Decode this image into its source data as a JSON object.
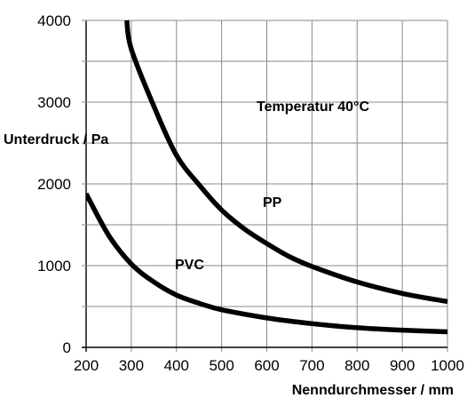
{
  "chart_data": {
    "type": "line",
    "xlabel": "Nenndurchmesser / mm",
    "ylabel": "Unterdruck / Pa",
    "annotation": "Temperatur 40°C",
    "xlim": [
      200,
      1000
    ],
    "ylim": [
      0,
      4000
    ],
    "x_ticks": [
      "200",
      "300",
      "400",
      "500",
      "600",
      "700",
      "800",
      "900",
      "1000"
    ],
    "y_ticks": [
      "0",
      "1000",
      "2000",
      "3000",
      "4000"
    ],
    "grid": true,
    "series": [
      {
        "name": "PP",
        "x": [
          290,
          300,
          350,
          400,
          450,
          500,
          550,
          600,
          650,
          700,
          800,
          900,
          1000
        ],
        "y": [
          4000,
          3650,
          2950,
          2350,
          1990,
          1680,
          1450,
          1270,
          1110,
          990,
          800,
          660,
          560
        ]
      },
      {
        "name": "PVC",
        "x": [
          200,
          250,
          300,
          350,
          400,
          450,
          500,
          600,
          700,
          800,
          900,
          1000
        ],
        "y": [
          1880,
          1370,
          1020,
          800,
          640,
          540,
          460,
          360,
          290,
          240,
          210,
          190
        ]
      }
    ]
  }
}
